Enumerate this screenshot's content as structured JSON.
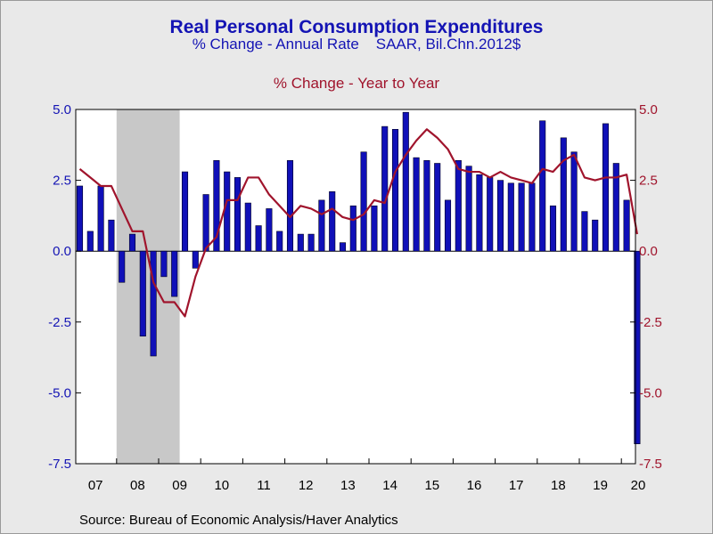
{
  "chart_data": {
    "type": "bar",
    "title": "Real Personal Consumption Expenditures",
    "subtitle": "% Change - Annual Rate    SAAR, Bil.Chn.2012$",
    "subtitle2": "% Change - Year to Year",
    "source": "Source:  Bureau of Economic Analysis/Haver Analytics",
    "ylim": [
      -7.5,
      5.0
    ],
    "yticks_left": [
      "5.0",
      "2.5",
      "0.0",
      "-2.5",
      "-5.0",
      "-7.5"
    ],
    "yticks_right": [
      "5.0",
      "2.5",
      "0.0",
      "-2.5",
      "-5.0",
      "-7.5"
    ],
    "ytick_values": [
      5.0,
      2.5,
      0.0,
      -2.5,
      -5.0,
      -7.5
    ],
    "year_labels": [
      "07",
      "08",
      "09",
      "10",
      "11",
      "12",
      "13",
      "14",
      "15",
      "16",
      "17",
      "18",
      "19",
      "20"
    ],
    "recession": {
      "start_quarter": 4,
      "end_quarter": 9
    },
    "series": [
      {
        "kind": "bar",
        "color": "#1010b8",
        "values": [
          2.3,
          0.7,
          2.3,
          1.1,
          -1.1,
          0.6,
          -3.0,
          -3.7,
          -0.9,
          -1.6,
          2.8,
          -0.6,
          2.0,
          3.2,
          2.8,
          2.6,
          1.7,
          0.9,
          1.5,
          0.7,
          3.2,
          0.6,
          0.6,
          1.8,
          2.1,
          0.3,
          1.6,
          3.5,
          1.6,
          4.4,
          4.3,
          4.9,
          3.3,
          3.2,
          3.1,
          1.8,
          3.2,
          3.0,
          2.7,
          2.6,
          2.5,
          2.4,
          2.4,
          2.4,
          4.6,
          1.6,
          4.0,
          3.5,
          1.4,
          1.1,
          4.5,
          3.1,
          1.8,
          -6.8
        ]
      },
      {
        "kind": "line",
        "color": "#a0142c",
        "values": [
          2.9,
          2.6,
          2.3,
          2.3,
          1.5,
          0.7,
          0.7,
          -1.1,
          -1.8,
          -1.8,
          -2.3,
          -0.9,
          0.1,
          0.5,
          1.8,
          1.8,
          2.6,
          2.6,
          2.0,
          1.6,
          1.2,
          1.6,
          1.5,
          1.3,
          1.5,
          1.2,
          1.1,
          1.3,
          1.8,
          1.7,
          2.8,
          3.4,
          3.9,
          4.3,
          4.0,
          3.6,
          2.9,
          2.8,
          2.8,
          2.6,
          2.8,
          2.6,
          2.5,
          2.4,
          2.9,
          2.8,
          3.2,
          3.4,
          2.6,
          2.5,
          2.6,
          2.6,
          2.7,
          0.6
        ]
      }
    ]
  }
}
